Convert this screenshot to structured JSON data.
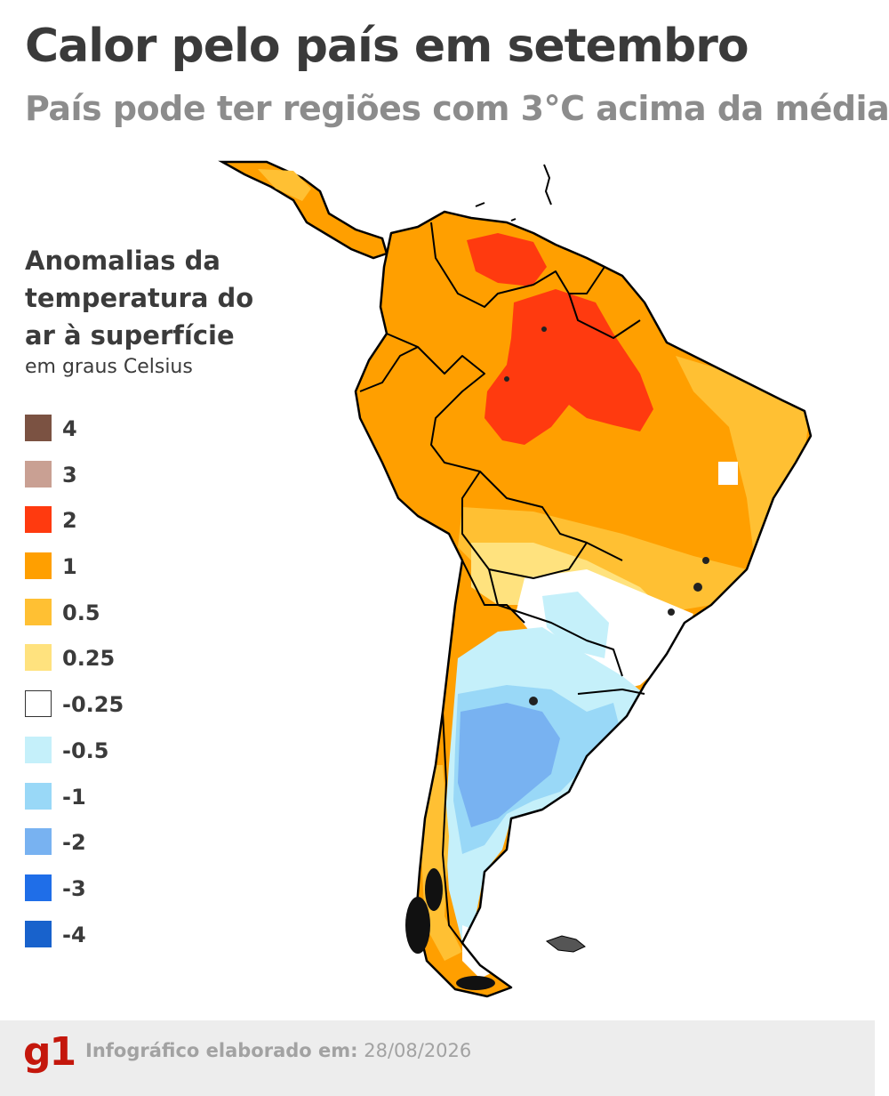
{
  "header": {
    "title": "Calor pelo país em setembro",
    "subtitle": "País pode ter regiões com 3°C acima da média"
  },
  "legend": {
    "title": "Anomalias da temperatura do ar à superfície",
    "unit": "em graus Celsius",
    "items": [
      {
        "label": "4",
        "color": "#7b5242"
      },
      {
        "label": "3",
        "color": "#c9a093"
      },
      {
        "label": "2",
        "color": "#ff3a0f"
      },
      {
        "label": "1",
        "color": "#ff9f00"
      },
      {
        "label": "0.5",
        "color": "#ffc033"
      },
      {
        "label": "0.25",
        "color": "#ffe27e"
      },
      {
        "label": "-0.25",
        "color": "#ffffff"
      },
      {
        "label": "-0.5",
        "color": "#c5f0fa"
      },
      {
        "label": "-1",
        "color": "#99d8f7"
      },
      {
        "label": "-2",
        "color": "#78b2f1"
      },
      {
        "label": "-3",
        "color": "#1f6ee8"
      },
      {
        "label": "-4",
        "color": "#1862cc"
      }
    ]
  },
  "footer": {
    "logo": "g1",
    "credit_label": "Infográfico elaborado em:",
    "credit_date": "28/08/2026"
  }
}
